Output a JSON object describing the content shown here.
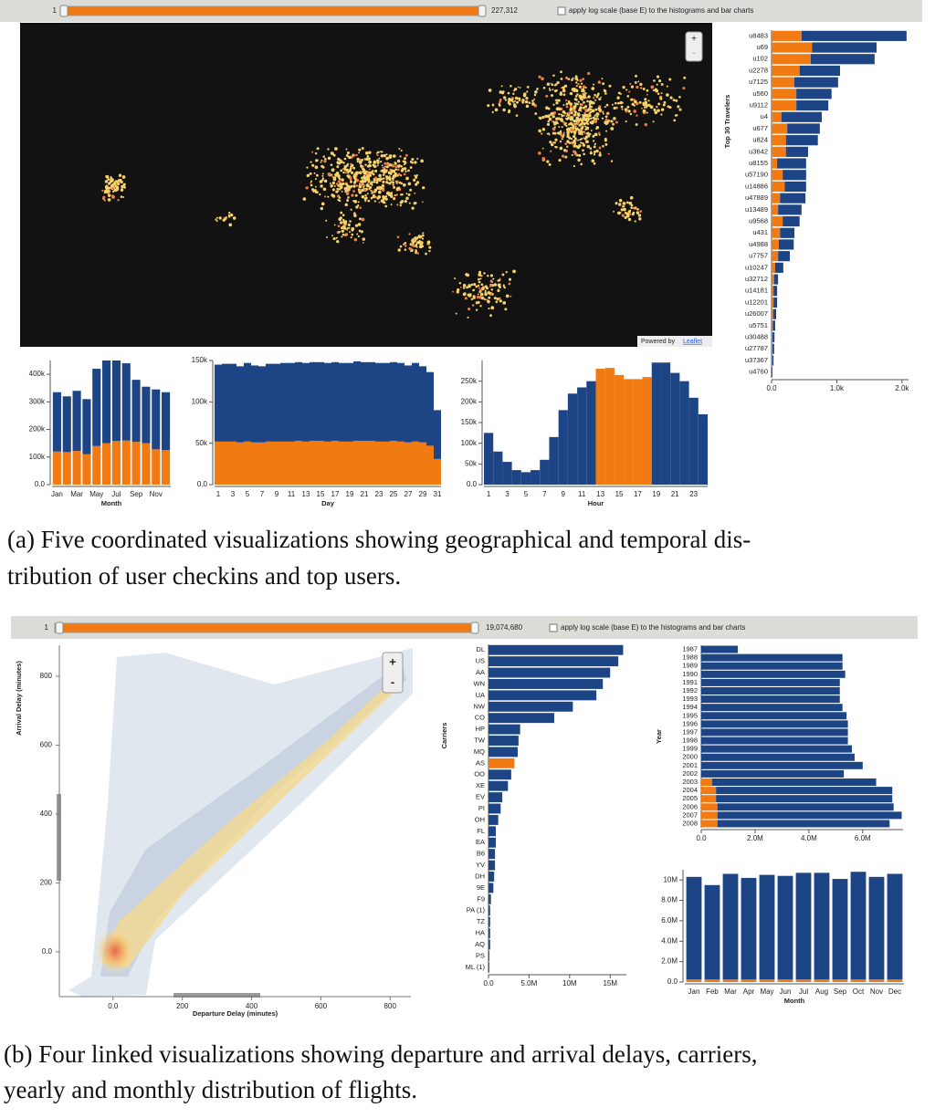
{
  "controls": {
    "a": {
      "min_label": "1",
      "max_label": "227,312",
      "log_label": "apply log scale (base E) to the histograms and bar charts"
    },
    "b": {
      "min_label": "1",
      "max_label": "19,074,680",
      "log_label": "apply log scale (base E) to the histograms and bar charts"
    }
  },
  "map": {
    "zoom_in": "+",
    "zoom_out": "-",
    "attribution": "Powered by",
    "attribution_link": "Leaflet"
  },
  "scatter_zoom": {
    "zoom_in": "+",
    "zoom_out": "-"
  },
  "captions": {
    "a": [
      "(a) Five coordinated visualizations showing geographical and temporal dis-",
      "tribution of user checkins and top users."
    ],
    "b": [
      "(b) Four linked visualizations showing departure and arrival delays, carriers,",
      "yearly and monthly distribution of flights."
    ]
  },
  "chart_data": [
    {
      "type": "bar",
      "horizontal": true,
      "y_label": "Top 30 Travelers",
      "categories": [
        "u8483",
        "u69",
        "u102",
        "u2278",
        "u7125",
        "u560",
        "u9112",
        "u4",
        "u677",
        "u824",
        "u3642",
        "u8155",
        "u57190",
        "u14886",
        "u47889",
        "u13489",
        "u9568",
        "u431",
        "u4988",
        "u7757",
        "u10247",
        "u32712",
        "u14181",
        "u12201",
        "u26007",
        "u5751",
        "u30488",
        "u27787",
        "u37367",
        "u4760"
      ],
      "series": [
        {
          "color": "#f27a12",
          "values": [
            460,
            620,
            600,
            430,
            350,
            380,
            380,
            150,
            240,
            220,
            220,
            85,
            170,
            200,
            130,
            100,
            170,
            130,
            110,
            100,
            55,
            40,
            30,
            30,
            25,
            20,
            15,
            15,
            10,
            5
          ]
        },
        {
          "color": "#1d4585",
          "values": [
            1610,
            990,
            980,
            620,
            670,
            540,
            490,
            620,
            500,
            490,
            340,
            445,
            360,
            330,
            390,
            360,
            260,
            220,
            230,
            180,
            125,
            60,
            55,
            55,
            45,
            35,
            30,
            25,
            20,
            10
          ]
        }
      ],
      "xlim": [
        0,
        2100
      ],
      "xticks": [
        {
          "value": 0,
          "label": "0.0"
        },
        {
          "value": 1000,
          "label": "1.0k"
        },
        {
          "value": 2000,
          "label": "2.0k"
        }
      ]
    },
    {
      "type": "bar",
      "x_label": "Month",
      "categories": [
        "Jan",
        null,
        "Mar",
        null,
        "May",
        null,
        "Jul",
        null,
        "Sep",
        null,
        "Nov",
        null
      ],
      "series": [
        {
          "color": "#f27a12",
          "values": [
            120000,
            118000,
            122000,
            110000,
            140000,
            150000,
            158000,
            160000,
            155000,
            150000,
            128000,
            125000
          ]
        },
        {
          "color": "#1d4585",
          "values": [
            215000,
            202000,
            218000,
            200000,
            280000,
            300000,
            292000,
            280000,
            225000,
            205000,
            217000,
            210000
          ]
        }
      ],
      "ylim": [
        0,
        450000
      ],
      "yticks": [
        {
          "value": 0,
          "label": "0.0"
        },
        {
          "value": 100000,
          "label": "100k"
        },
        {
          "value": 200000,
          "label": "200k"
        },
        {
          "value": 300000,
          "label": "300k"
        },
        {
          "value": 400000,
          "label": "400k"
        }
      ]
    },
    {
      "type": "bar",
      "x_label": "Day",
      "categories": [
        1,
        null,
        3,
        null,
        5,
        null,
        7,
        null,
        9,
        null,
        11,
        null,
        13,
        null,
        15,
        null,
        17,
        null,
        19,
        null,
        21,
        null,
        23,
        null,
        25,
        null,
        27,
        null,
        29,
        null,
        31
      ],
      "series": [
        {
          "color": "#f27a12",
          "values": [
            52000,
            52000,
            52000,
            51000,
            52000,
            51000,
            51000,
            52000,
            52000,
            52000,
            52000,
            53000,
            52000,
            53000,
            53000,
            52000,
            53000,
            52000,
            52000,
            53000,
            53000,
            53000,
            52000,
            52000,
            53000,
            52000,
            51000,
            52000,
            51000,
            47000,
            31000
          ]
        },
        {
          "color": "#1d4585",
          "values": [
            93000,
            94000,
            94000,
            92000,
            95000,
            93000,
            92000,
            94000,
            94000,
            95000,
            95000,
            95000,
            95000,
            95000,
            95000,
            95000,
            95000,
            95000,
            95000,
            96000,
            95000,
            95000,
            95000,
            95000,
            95000,
            95000,
            93000,
            95000,
            92000,
            89000,
            59000
          ]
        }
      ],
      "ylim": [
        0,
        150000
      ],
      "yticks": [
        {
          "value": 0,
          "label": "0.0"
        },
        {
          "value": 50000,
          "label": "50k"
        },
        {
          "value": 100000,
          "label": "100k"
        },
        {
          "value": 150000,
          "label": "150k"
        }
      ]
    },
    {
      "type": "bar",
      "x_label": "Hour",
      "categories": [
        1,
        null,
        3,
        null,
        5,
        null,
        7,
        null,
        9,
        null,
        11,
        null,
        13,
        null,
        15,
        null,
        17,
        null,
        19,
        null,
        21,
        null,
        23,
        null
      ],
      "series": [
        {
          "color": "#f27a12",
          "values": [
            null,
            null,
            null,
            null,
            null,
            null,
            null,
            null,
            null,
            null,
            null,
            null,
            280000,
            282000,
            265000,
            255000,
            255000,
            260000,
            null,
            null,
            null,
            null,
            null,
            null
          ]
        },
        {
          "color": "#1d4585",
          "values": [
            125000,
            80000,
            55000,
            35000,
            30000,
            35000,
            60000,
            115000,
            180000,
            220000,
            235000,
            250000,
            null,
            null,
            null,
            null,
            null,
            null,
            295000,
            295000,
            270000,
            250000,
            210000,
            170000
          ]
        }
      ],
      "ylim": [
        0,
        300000
      ],
      "yticks": [
        {
          "value": 0,
          "label": "0.0"
        },
        {
          "value": 50000,
          "label": "50k"
        },
        {
          "value": 100000,
          "label": "100k"
        },
        {
          "value": 150000,
          "label": "150k"
        },
        {
          "value": 200000,
          "label": "200k"
        },
        {
          "value": 250000,
          "label": "250k"
        }
      ]
    },
    {
      "type": "scatter",
      "x_label": "Departure Delay (minutes)",
      "y_label": "Arrival Delay (minutes)",
      "xlim": [
        -155,
        860
      ],
      "xticks": [
        {
          "value": 0,
          "label": "0.0"
        },
        200,
        400,
        600,
        800
      ],
      "ylim": [
        -130,
        890
      ],
      "yticks": [
        {
          "value": 0,
          "label": "0.0"
        },
        200,
        400,
        600,
        800
      ]
    },
    {
      "type": "bar",
      "horizontal": true,
      "y_label": "Carriers",
      "categories": [
        "DL",
        "US",
        "AA",
        "WN",
        "UA",
        "NW",
        "CO",
        "HP",
        "TW",
        "MQ",
        "AS",
        "OO",
        "XE",
        "EV",
        "PI",
        "OH",
        "FL",
        "EA",
        "B6",
        "YV",
        "DH",
        "9E",
        "F9",
        "PA (1)",
        "TZ",
        "HA",
        "AQ",
        "PS",
        "ML (1)"
      ],
      "values": [
        16600000,
        16000000,
        15000000,
        14100000,
        13300000,
        10400000,
        8100000,
        3900000,
        3700000,
        3600000,
        3200000,
        2800000,
        2400000,
        1700000,
        1500000,
        1200000,
        900000,
        900000,
        800000,
        800000,
        700000,
        600000,
        300000,
        200000,
        200000,
        200000,
        200000,
        100000,
        100000
      ],
      "colors": [
        "#1d4585",
        "#1d4585",
        "#1d4585",
        "#1d4585",
        "#1d4585",
        "#1d4585",
        "#1d4585",
        "#1d4585",
        "#1d4585",
        "#1d4585",
        "#f27a12",
        "#1d4585",
        "#1d4585",
        "#1d4585",
        "#1d4585",
        "#1d4585",
        "#1d4585",
        "#1d4585",
        "#1d4585",
        "#1d4585",
        "#1d4585",
        "#1d4585",
        "#1d4585",
        "#1d4585",
        "#1d4585",
        "#1d4585",
        "#1d4585",
        "#1d4585",
        "#1d4585"
      ],
      "xlim": [
        0,
        17000000
      ],
      "xticks": [
        {
          "value": 0,
          "label": "0.0"
        },
        {
          "value": 5000000,
          "label": "5.0M"
        },
        {
          "value": 10000000,
          "label": "10M"
        },
        {
          "value": 15000000,
          "label": "15M"
        }
      ]
    },
    {
      "type": "bar",
      "horizontal": true,
      "y_label": "Year",
      "categories": [
        1987,
        1988,
        1989,
        1990,
        1991,
        1992,
        1993,
        1994,
        1995,
        1996,
        1997,
        1998,
        1999,
        2000,
        2001,
        2002,
        2003,
        2004,
        2005,
        2006,
        2007,
        2008
      ],
      "series": [
        {
          "color": "#f27a12",
          "values": [
            null,
            null,
            null,
            null,
            null,
            null,
            null,
            null,
            null,
            null,
            null,
            null,
            null,
            null,
            null,
            null,
            400000,
            550000,
            550000,
            600000,
            600000,
            600000
          ]
        },
        {
          "color": "#1d4585",
          "values": [
            1360000,
            5250000,
            5250000,
            5350000,
            5150000,
            5150000,
            5150000,
            5250000,
            5400000,
            5450000,
            5450000,
            5450000,
            5600000,
            5700000,
            6000000,
            5300000,
            6100000,
            6550000,
            6550000,
            6550000,
            6850000,
            6400000
          ]
        }
      ],
      "xlim": [
        0,
        7500000
      ],
      "xticks": [
        {
          "value": 0,
          "label": "0.0"
        },
        {
          "value": 2000000,
          "label": "2.0M"
        },
        {
          "value": 4000000,
          "label": "4.0M"
        },
        {
          "value": 6000000,
          "label": "6.0M"
        }
      ]
    },
    {
      "type": "bar",
      "x_label": "Month",
      "categories": [
        "Jan",
        "Feb",
        "Mar",
        "Apr",
        "May",
        "Jun",
        "Jul",
        "Aug",
        "Sep",
        "Oct",
        "Nov",
        "Dec"
      ],
      "series": [
        {
          "color": "#f27a12",
          "values": [
            250000,
            250000,
            250000,
            250000,
            250000,
            250000,
            250000,
            250000,
            250000,
            250000,
            250000,
            250000
          ]
        },
        {
          "color": "#1d4585",
          "values": [
            10050000,
            9250000,
            10350000,
            9950000,
            10250000,
            10150000,
            10450000,
            10450000,
            9850000,
            10550000,
            10050000,
            10350000
          ]
        }
      ],
      "ylim": [
        0,
        11000000
      ],
      "yticks": [
        {
          "value": 0,
          "label": "0.0"
        },
        {
          "value": 2000000,
          "label": "2.0M"
        },
        {
          "value": 4000000,
          "label": "4.0M"
        },
        {
          "value": 6000000,
          "label": "6.0M"
        },
        {
          "value": 8000000,
          "label": "8.0M"
        },
        {
          "value": 10000000,
          "label": "10M"
        }
      ]
    }
  ]
}
